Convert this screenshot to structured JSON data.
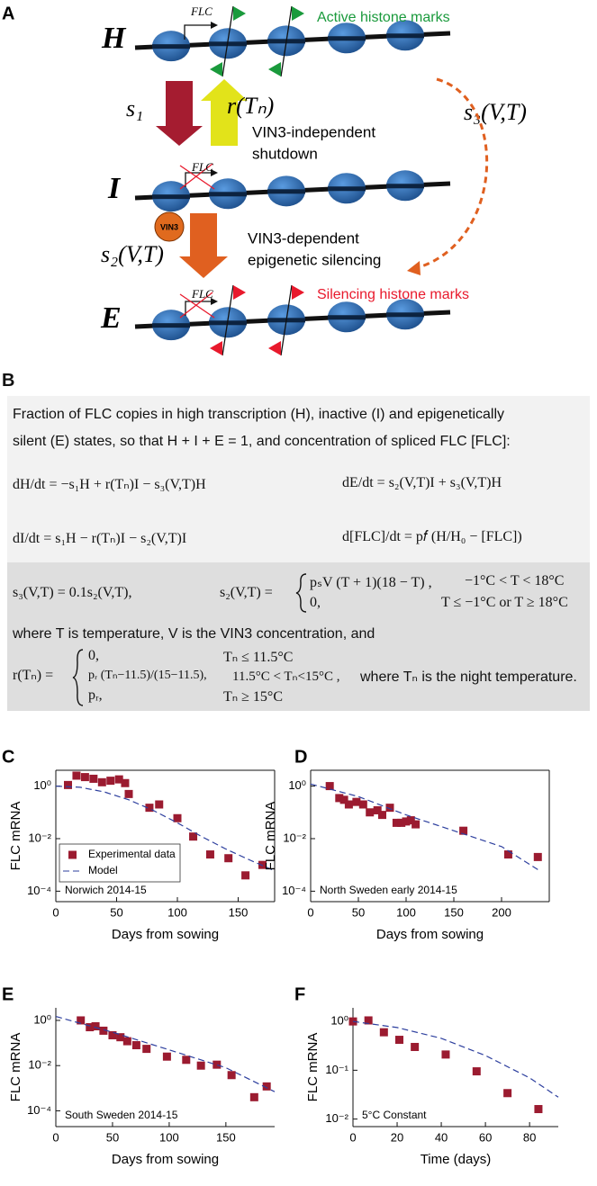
{
  "panel_a": {
    "label": "A",
    "states": [
      "H",
      "I",
      "E"
    ],
    "gene": [
      "FLC",
      "FLC",
      "FLC"
    ],
    "active_marks": "Active histone marks",
    "silencing_marks": "Silencing histone marks",
    "s1": "s₁",
    "r": "r(Tₙ)",
    "shutdown": [
      "VIN3-independent",
      "shutdown"
    ],
    "vin3": "VIN3",
    "s2": "s₂(V,T)",
    "silencing": [
      "VIN3-dependent",
      "epigenetic silencing"
    ],
    "s3": "s₃(V,T)"
  },
  "panel_b": {
    "label": "B",
    "intro": [
      "Fraction of FLC copies in high transcription (H), inactive (I) and epigenetically",
      "silent (E) states, so that H + I + E = 1, and concentration of spliced FLC [FLC]:"
    ],
    "equations": [
      "dH/dt = −s₁H + r(Tₙ)I − s₃(V,T)H",
      "dE/dt = s₂(V,T)I + s₃(V,T)H",
      "dI/dt = s₁H − r(Tₙ)I − s₂(V,T)I",
      "d[FLC]/dt = p𝑓 (H/H₀ − [FLC])"
    ],
    "s3": "s₃(V,T) = 0.1s₂(V,T),",
    "s2_lhs": "s₂(V,T) =",
    "s2_cases": [
      [
        "pₛV (T + 1)(18 − T) ,",
        "−1°C < T < 18°C"
      ],
      [
        "0,",
        "T ≤ −1°C or T ≥ 18°C"
      ]
    ],
    "where": "where T is temperature, V is the VIN3 concentration, and",
    "r_lhs": "r(Tₙ) =",
    "r_cases": [
      [
        "0,",
        "Tₙ ≤ 11.5°C"
      ],
      [
        "pᵣ (Tₙ−11.5)/(15−11.5),",
        "11.5°C < Tₙ<15°C ,"
      ],
      [
        "pᵣ,",
        "Tₙ ≥ 15°C"
      ]
    ],
    "night": "where Tₙ is the night temperature."
  },
  "chart_data": [
    {
      "type": "scatter",
      "panel": "C",
      "annotation": "Norwich 2014-15",
      "x_label": "Days from sowing",
      "y_label": "FLC mRNA",
      "xlim": [
        0,
        180
      ],
      "xticks": [
        0,
        50,
        100,
        150
      ],
      "ylim": [
        4e-05,
        4
      ],
      "yscale": "log",
      "box": true,
      "legend": "lower left",
      "yticks": [
        {
          "value": 1,
          "label": "10⁰"
        },
        {
          "value": 0.01,
          "label": "10⁻²"
        },
        {
          "value": 0.0001,
          "label": "10⁻⁴"
        }
      ],
      "series": [
        {
          "name": "Experimental data",
          "mode": "markers",
          "color": "#9b1b30",
          "x": [
            10,
            17,
            24,
            31,
            38,
            45,
            52,
            57,
            60,
            77,
            85,
            100,
            113,
            127,
            142,
            156,
            170
          ],
          "values": [
            1.1,
            2.5,
            2.2,
            1.9,
            1.4,
            1.6,
            1.8,
            1.3,
            0.5,
            0.15,
            0.2,
            0.06,
            0.012,
            0.0025,
            0.0018,
            0.0004,
            0.001
          ]
        },
        {
          "name": "Model",
          "mode": "dashed-line",
          "color": "#2d3f9e",
          "x": [
            0,
            20,
            40,
            60,
            80,
            100,
            120,
            140,
            160,
            180
          ],
          "values": [
            1.0,
            0.9,
            0.6,
            0.3,
            0.12,
            0.04,
            0.012,
            0.004,
            0.0015,
            0.0006
          ]
        }
      ]
    },
    {
      "type": "scatter",
      "panel": "D",
      "annotation": "North Sweden early 2014-15",
      "x_label": "Days from sowing",
      "y_label": "FLC mRNA",
      "xlim": [
        0,
        250
      ],
      "xticks": [
        0,
        50,
        100,
        150,
        200
      ],
      "ylim": [
        4e-05,
        4
      ],
      "yscale": "log",
      "box": true,
      "yticks": [
        {
          "value": 1,
          "label": "10⁰"
        },
        {
          "value": 0.01,
          "label": "10⁻²"
        },
        {
          "value": 0.0001,
          "label": "10⁻⁴"
        }
      ],
      "series": [
        {
          "mode": "markers",
          "color": "#9b1b30",
          "x": [
            20,
            30,
            35,
            40,
            48,
            55,
            62,
            70,
            75,
            83,
            90,
            95,
            100,
            105,
            110,
            160,
            207,
            238
          ],
          "values": [
            1.0,
            0.35,
            0.3,
            0.2,
            0.25,
            0.2,
            0.1,
            0.12,
            0.08,
            0.15,
            0.04,
            0.04,
            0.045,
            0.05,
            0.035,
            0.02,
            0.0025,
            0.002
          ]
        },
        {
          "mode": "dashed-line",
          "color": "#2d3f9e",
          "x": [
            0,
            50,
            100,
            150,
            200,
            240
          ],
          "values": [
            1.2,
            0.4,
            0.08,
            0.02,
            0.005,
            0.0006
          ]
        }
      ]
    },
    {
      "type": "scatter",
      "panel": "E",
      "annotation": "South Sweden 2014-15",
      "x_label": "Days from sowing",
      "y_label": "FLC mRNA",
      "xlim": [
        0,
        193
      ],
      "xticks": [
        0,
        50,
        100,
        150
      ],
      "ylim": [
        2e-05,
        3.6
      ],
      "yscale": "log",
      "yticks": [
        {
          "value": 1,
          "label": "10⁰"
        },
        {
          "value": 0.01,
          "label": "10⁻²"
        },
        {
          "value": 0.0001,
          "label": "10⁻⁴"
        }
      ],
      "series": [
        {
          "mode": "markers",
          "color": "#9b1b30",
          "x": [
            22,
            30,
            35,
            42,
            50,
            57,
            63,
            71,
            80,
            98,
            115,
            128,
            142,
            155,
            175,
            186
          ],
          "values": [
            1.0,
            0.5,
            0.55,
            0.35,
            0.22,
            0.18,
            0.12,
            0.08,
            0.055,
            0.025,
            0.018,
            0.01,
            0.011,
            0.0038,
            0.0004,
            0.0012
          ]
        },
        {
          "mode": "dashed-line",
          "color": "#2d3f9e",
          "x": [
            0,
            50,
            100,
            150,
            193
          ],
          "values": [
            1.5,
            0.3,
            0.05,
            0.008,
            0.0007
          ]
        }
      ]
    },
    {
      "type": "scatter",
      "panel": "F",
      "annotation": "5°C Constant",
      "x_label": "Time (days)",
      "y_label": "FLC mRNA",
      "xlim": [
        0,
        93
      ],
      "xticks": [
        0,
        20,
        40,
        60,
        80
      ],
      "ylim": [
        0.007,
        1.9
      ],
      "yscale": "log",
      "yticks": [
        {
          "value": 1,
          "label": "10⁰"
        },
        {
          "value": 0.1,
          "label": "10⁻¹"
        },
        {
          "value": 0.01,
          "label": "10⁻²"
        }
      ],
      "series": [
        {
          "mode": "markers",
          "color": "#9b1b30",
          "x": [
            0,
            7,
            14,
            21,
            28,
            42,
            56,
            70,
            84
          ],
          "values": [
            1.0,
            1.05,
            0.6,
            0.42,
            0.3,
            0.21,
            0.095,
            0.034,
            0.016
          ]
        },
        {
          "mode": "dashed-line",
          "color": "#2d3f9e",
          "x": [
            0,
            20,
            40,
            60,
            80,
            93
          ],
          "values": [
            1.0,
            0.75,
            0.45,
            0.2,
            0.07,
            0.028
          ]
        }
      ]
    }
  ]
}
